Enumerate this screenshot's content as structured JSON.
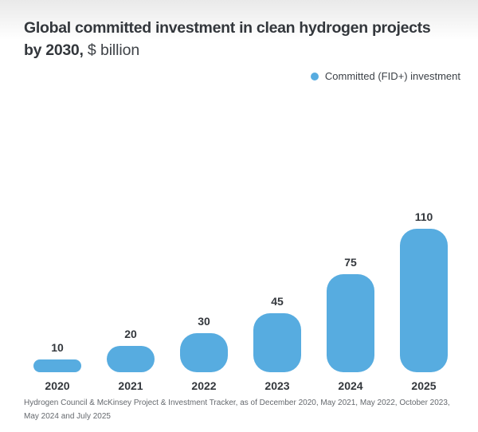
{
  "header": {
    "title_line1": "Global committed investment in clean hydrogen projects",
    "title_line2_bold": "by 2030,",
    "title_line2_regular": " $ billion"
  },
  "legend": {
    "label": "Committed (FID+) investment"
  },
  "footnote": "Hydrogen Council & McKinsey Project & Investment Tracker, as of December 2020, May 2021, May 2022, October 2023, May 2024 and July 2025",
  "colors": {
    "bar": "#57ace0",
    "title_text": "#33373c",
    "legend_text": "#3c4147",
    "footnote_text": "#65696e"
  },
  "chart_data": {
    "type": "bar",
    "title": "Global committed investment in clean hydrogen projects by 2030",
    "unit": "$ billion",
    "series_name": "Committed (FID+) investment",
    "categories": [
      "2020",
      "2021",
      "2022",
      "2023",
      "2024",
      "2025"
    ],
    "values": [
      10,
      20,
      30,
      45,
      75,
      110
    ],
    "ylim": [
      0,
      110
    ],
    "grid": false,
    "axis_line": false,
    "data_labels": true,
    "legend_position": "top-right",
    "bar_color": "#57ace0"
  }
}
